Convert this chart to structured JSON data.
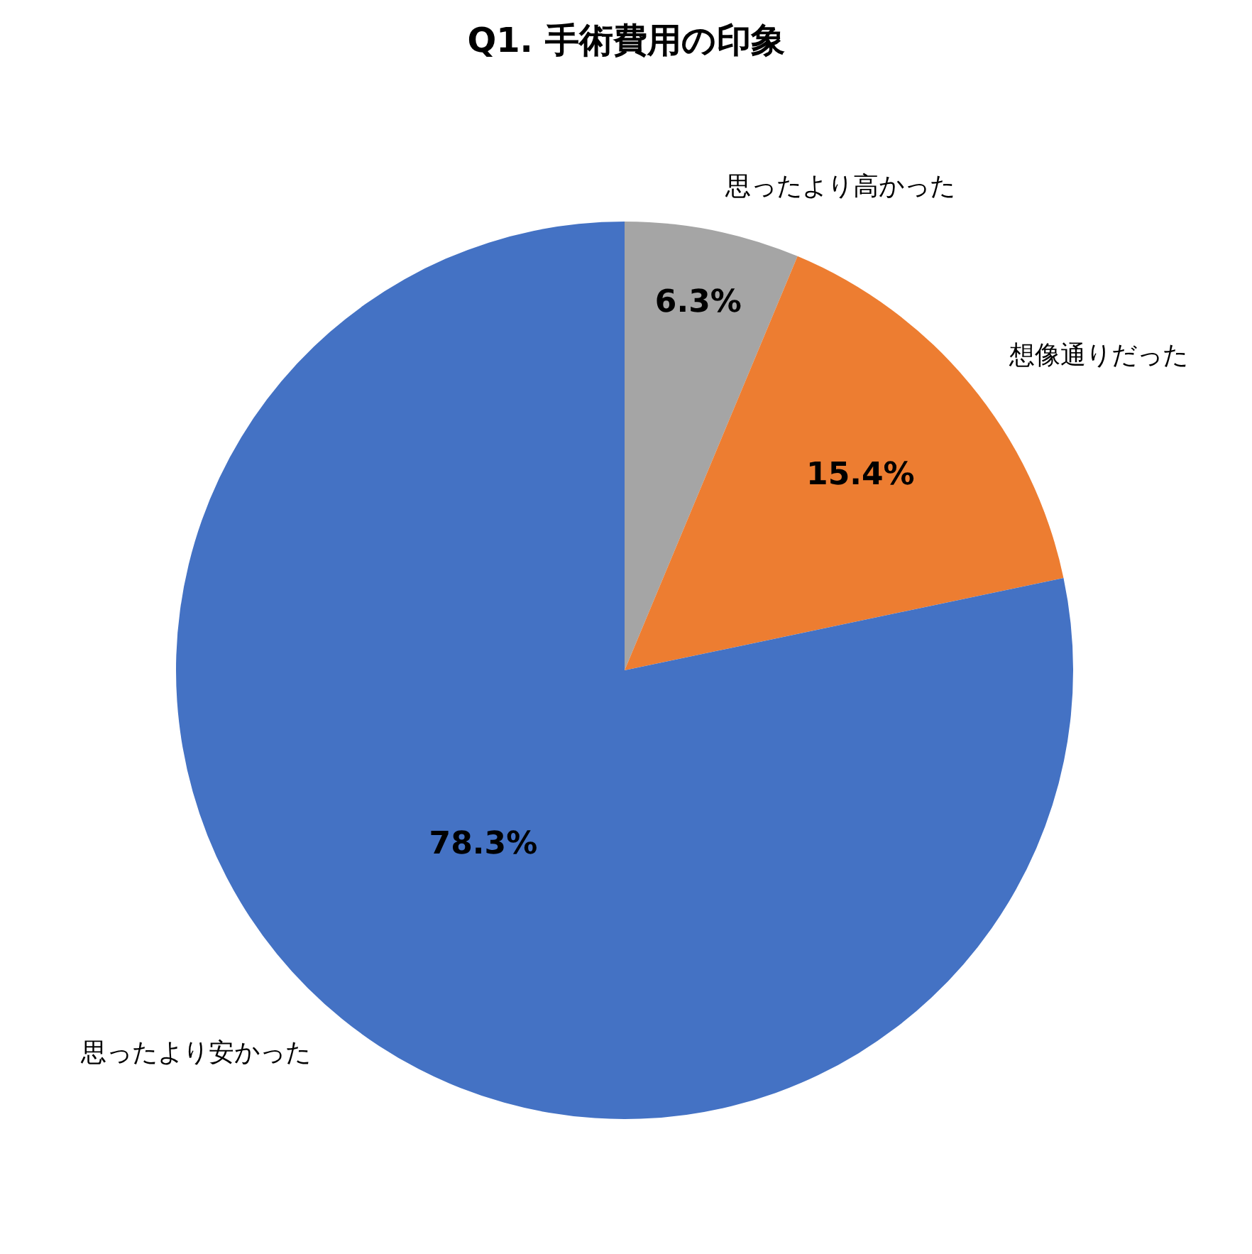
{
  "chart_data": {
    "type": "pie",
    "title": "Q1. 手術費用の印象",
    "categories": [
      "思ったより高かった",
      "想像通りだった",
      "思ったより安かった"
    ],
    "values": [
      6.3,
      15.4,
      78.3
    ],
    "colors": [
      "#a5a5a5",
      "#ed7d31",
      "#4472c4"
    ],
    "value_labels": [
      "6.3%",
      "15.4%",
      "78.3%"
    ]
  }
}
